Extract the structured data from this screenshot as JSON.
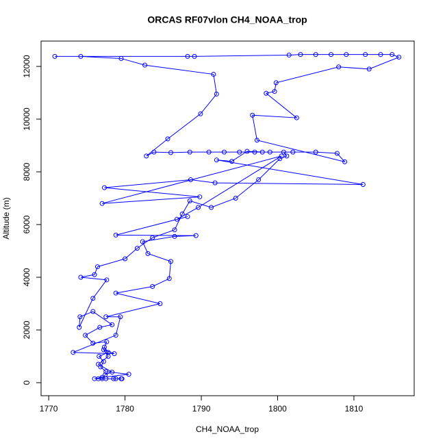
{
  "chart_data": {
    "type": "line",
    "title": "ORCAS RF07vlon CH4_NOAA_trop",
    "x_label": "CH4_NOAA_trop",
    "y_label": "Altitude (m)",
    "xlim": [
      1769.0,
      1817.9
    ],
    "ylim": [
      -494,
      12961
    ],
    "xticks": [
      1770,
      1780,
      1790,
      1800,
      1810
    ],
    "yticks": [
      0,
      2000,
      4000,
      6000,
      8000,
      10000,
      12000
    ],
    "grid": false,
    "series": [
      {
        "name": "CH4_NOAA_trop",
        "color": "#0000ff",
        "x": [
          1779.5,
          1778.5,
          1777.5,
          1776.5,
          1776,
          1777,
          1780.5,
          1777.5,
          1776.8,
          1777.2,
          1776.6,
          1777.8,
          1777.3,
          1777.6,
          1775.8,
          1774.8,
          1776.7,
          1778.3,
          1775.8,
          1774.1,
          1774,
          1775.8,
          1777.6,
          1774.2,
          1776,
          1776.4,
          1780,
          1781.6,
          1783.6,
          1786.5,
          1787.5,
          1788.5,
          1791.3,
          1794.5,
          1797.5,
          1800.3,
          1801.2,
          1800.8,
          1799,
          1797,
          1795,
          1793,
          1791,
          1788.5,
          1786,
          1783.8,
          1782.8,
          1785.6,
          1789.9,
          1792,
          1791.6,
          1782.6,
          1779.5,
          1774.2,
          1770.8,
          1788.2,
          1789.1,
          1801.5,
          1803,
          1805,
          1807,
          1809,
          1811.5,
          1813.5,
          1815,
          1815.9,
          1812,
          1808,
          1799.8,
          1799.6,
          1798.5,
          1802.5,
          1796.7,
          1797.3,
          1808.8,
          1807.8,
          1805,
          1802,
          1798,
          1796,
          1794,
          1792,
          1811.2,
          1791.8,
          1788.6,
          1777.3,
          1789.8,
          1777,
          1800.5,
          1789.6,
          1786.8,
          1788.2,
          1778.8,
          1789.3,
          1786.5,
          1782.3,
          1783,
          1786,
          1785.8,
          1783.6,
          1778.8,
          1784.6,
          1777.5,
          1779.4,
          1778.8,
          1773.2,
          1778.6,
          1777.2,
          1777.8,
          1776.5,
          1778.3,
          1777.4,
          1777,
          1778.8,
          1779.6
        ],
        "values": [
          150,
          150,
          150,
          150,
          150,
          200,
          320,
          420,
          600,
          800,
          1000,
          1150,
          1350,
          1550,
          1500,
          1800,
          2100,
          2200,
          2700,
          2500,
          2100,
          3200,
          3900,
          4000,
          4100,
          4400,
          4700,
          5100,
          5500,
          5800,
          6400,
          6900,
          6650,
          7000,
          7700,
          8500,
          8600,
          8750,
          8750,
          8750,
          8750,
          8750,
          8750,
          8750,
          8730,
          8750,
          8600,
          9250,
          10200,
          10950,
          11700,
          12050,
          12300,
          12380,
          12380,
          12380,
          12380,
          12430,
          12450,
          12450,
          12450,
          12450,
          12450,
          12450,
          12450,
          12350,
          11900,
          11980,
          11380,
          11050,
          10980,
          10050,
          10150,
          9200,
          8380,
          8700,
          8750,
          8750,
          8750,
          8780,
          8400,
          8450,
          7520,
          7580,
          7700,
          7400,
          7050,
          6800,
          8600,
          6650,
          6200,
          6300,
          5600,
          5580,
          5550,
          5350,
          4900,
          4600,
          3950,
          3650,
          3400,
          3000,
          2500,
          2500,
          1800,
          1150,
          1100,
          1250,
          1000,
          700,
          400,
          300,
          150,
          150,
          150
        ]
      }
    ]
  }
}
